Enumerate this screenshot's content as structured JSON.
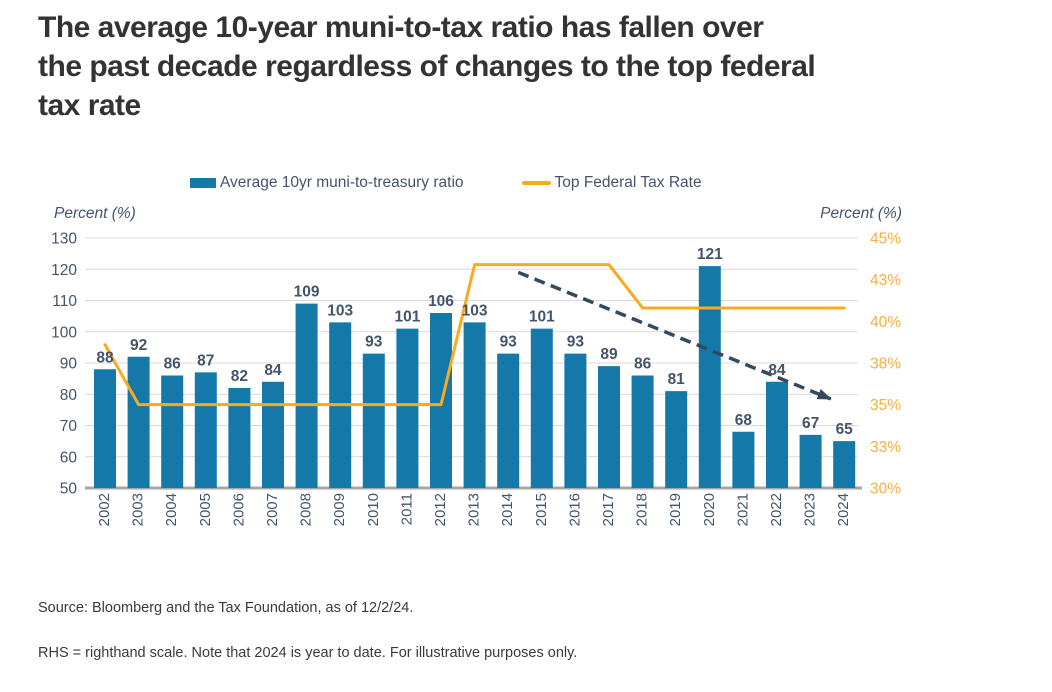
{
  "title_lines": [
    "The average 10-year muni-to-tax ratio has fallen over",
    "the past decade regardless of changes to the top federal",
    "tax rate"
  ],
  "legend": {
    "bar_label": "Average 10yr muni-to-treasury ratio",
    "line_label": "Top Federal Tax Rate"
  },
  "colors": {
    "bar_blue": "#1478a8",
    "line_orange": "#fbaa1c",
    "right_axis_orange": "#fcae38",
    "trend_arrow": "#35495c",
    "axis_text": "#44546a",
    "gridline": "#d9d9d9",
    "axis_line": "#a6a6a6",
    "title_text": "#333333"
  },
  "chart_data": {
    "type": "bar",
    "title": "The average 10-year muni-to-tax ratio has fallen over the past decade regardless of changes to the top federal tax rate",
    "categories": [
      "2002",
      "2003",
      "2004",
      "2005",
      "2006",
      "2007",
      "2008",
      "2009",
      "2010",
      "2011",
      "2012",
      "2013",
      "2014",
      "2015",
      "2016",
      "2017",
      "2018",
      "2019",
      "2020",
      "2021",
      "2022",
      "2023",
      "2024"
    ],
    "series": [
      {
        "name": "Average 10yr muni-to-treasury ratio",
        "type": "bar",
        "axis": "left",
        "color": "#1478a8",
        "data_labels": true,
        "values": [
          88,
          92,
          86,
          87,
          82,
          84,
          109,
          103,
          93,
          101,
          106,
          103,
          93,
          101,
          93,
          89,
          86,
          81,
          121,
          68,
          84,
          67,
          65
        ]
      },
      {
        "name": "Top Federal Tax Rate",
        "type": "line",
        "axis": "right",
        "color": "#fbaa1c",
        "data_labels": false,
        "values": [
          38.6,
          35,
          35,
          35,
          35,
          35,
          35,
          35,
          35,
          35,
          35,
          43.4,
          43.4,
          43.4,
          43.4,
          43.4,
          40.8,
          40.8,
          40.8,
          40.8,
          40.8,
          40.8,
          40.8
        ]
      }
    ],
    "left_axis": {
      "title": "Percent (%)",
      "min": 50,
      "max": 130,
      "ticks": [
        130,
        120,
        110,
        100,
        90,
        80,
        70,
        60,
        50
      ]
    },
    "right_axis": {
      "title": "Percent (%)",
      "min": 30,
      "max": 45,
      "tick_labels": [
        "45%",
        "43%",
        "40%",
        "38%",
        "35%",
        "33%",
        "30%"
      ]
    },
    "annotation_arrow": {
      "axis": "left",
      "from_year": 2014.3,
      "from_value": 119,
      "to_year": 2023.6,
      "to_value": 78.5
    },
    "grid": true,
    "legend_position": "top"
  },
  "footer": {
    "source": "Source: Bloomberg and the Tax Foundation, as of 12/2/24.",
    "note": "RHS = righthand scale. Note that 2024 is year to date. For illustrative purposes only."
  }
}
